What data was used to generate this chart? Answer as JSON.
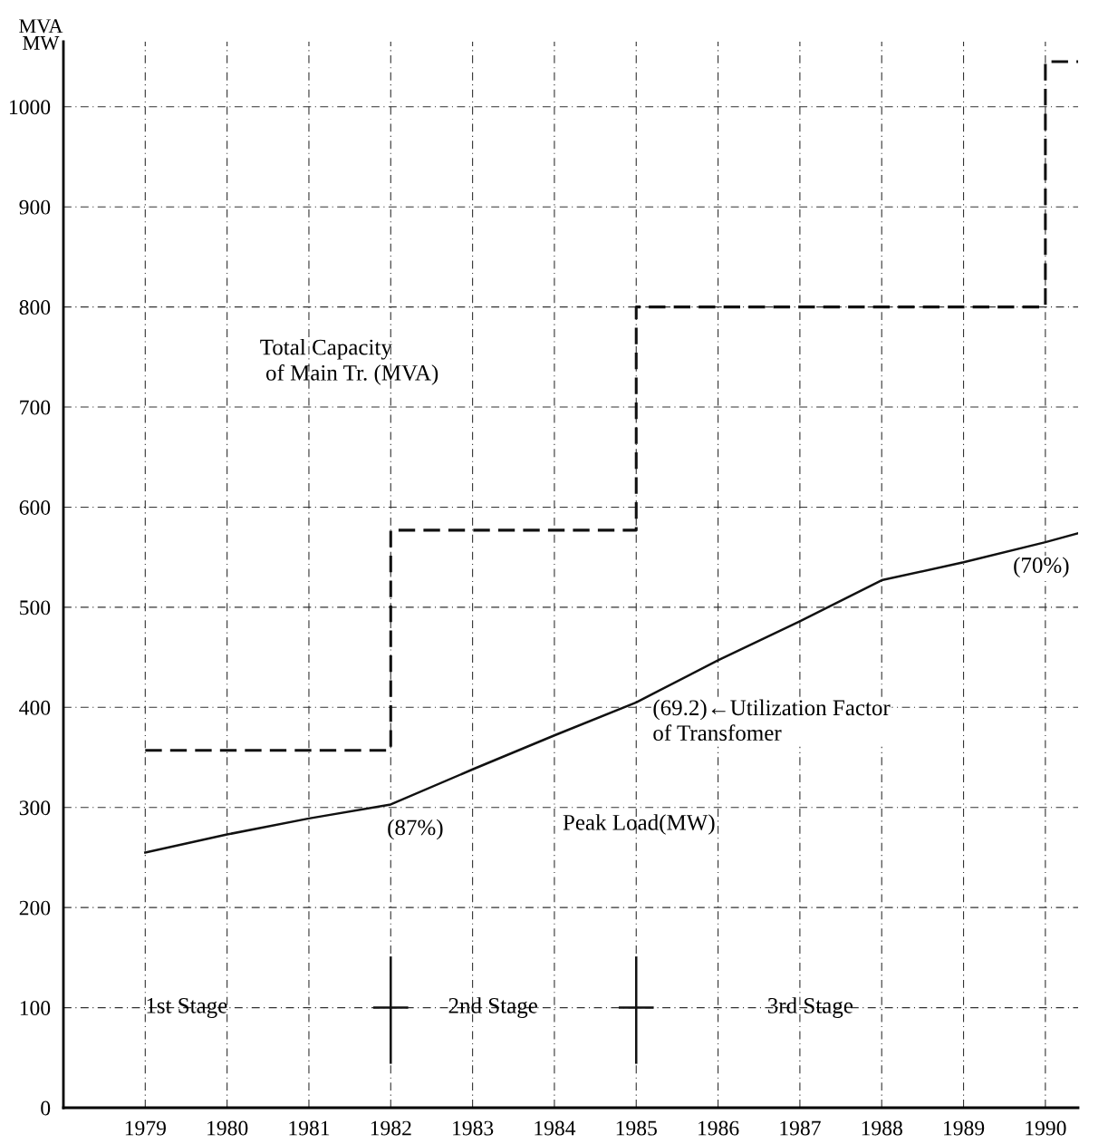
{
  "chart_data": {
    "type": "line",
    "ylabel": "MVA\nMW",
    "x": [
      1979,
      1980,
      1981,
      1982,
      1983,
      1984,
      1985,
      1986,
      1987,
      1988,
      1989,
      1990,
      1990.4
    ],
    "series": [
      {
        "type": "step",
        "color": "#111111",
        "line_style": "dashed",
        "x": [
          1979,
          1982,
          1985,
          1990,
          1990.4
        ],
        "values": [
          357,
          577,
          800,
          1045,
          1045
        ]
      },
      {
        "color": "#111111",
        "line_style": "solid",
        "values": [
          255,
          273,
          289,
          303,
          338,
          372,
          405,
          447,
          486,
          527,
          545,
          565,
          574
        ]
      }
    ],
    "xlim": [
      1978,
      1990.4
    ],
    "ylim": [
      0,
      1065
    ],
    "xticks": [
      1979,
      1980,
      1981,
      1982,
      1983,
      1984,
      1985,
      1986,
      1987,
      1988,
      1989,
      1990
    ],
    "yticks": [
      0,
      100,
      200,
      300,
      400,
      500,
      600,
      700,
      800,
      900,
      1000
    ],
    "grid": true,
    "marker": "none",
    "annotations": [
      "Total Capacity\n of Main Tr. (MVA)",
      {
        "text": "(87%)",
        "x": 1982,
        "y": 303
      },
      "Peak Load(MW)",
      {
        "text": "(69.2)←Utilization Factor\nof Transfomer",
        "x": 1985,
        "y": 405
      },
      {
        "text": "(70%)",
        "x": 1990,
        "y": 565
      },
      "1st Stage",
      "2nd Stage",
      "3rd Stage"
    ]
  }
}
